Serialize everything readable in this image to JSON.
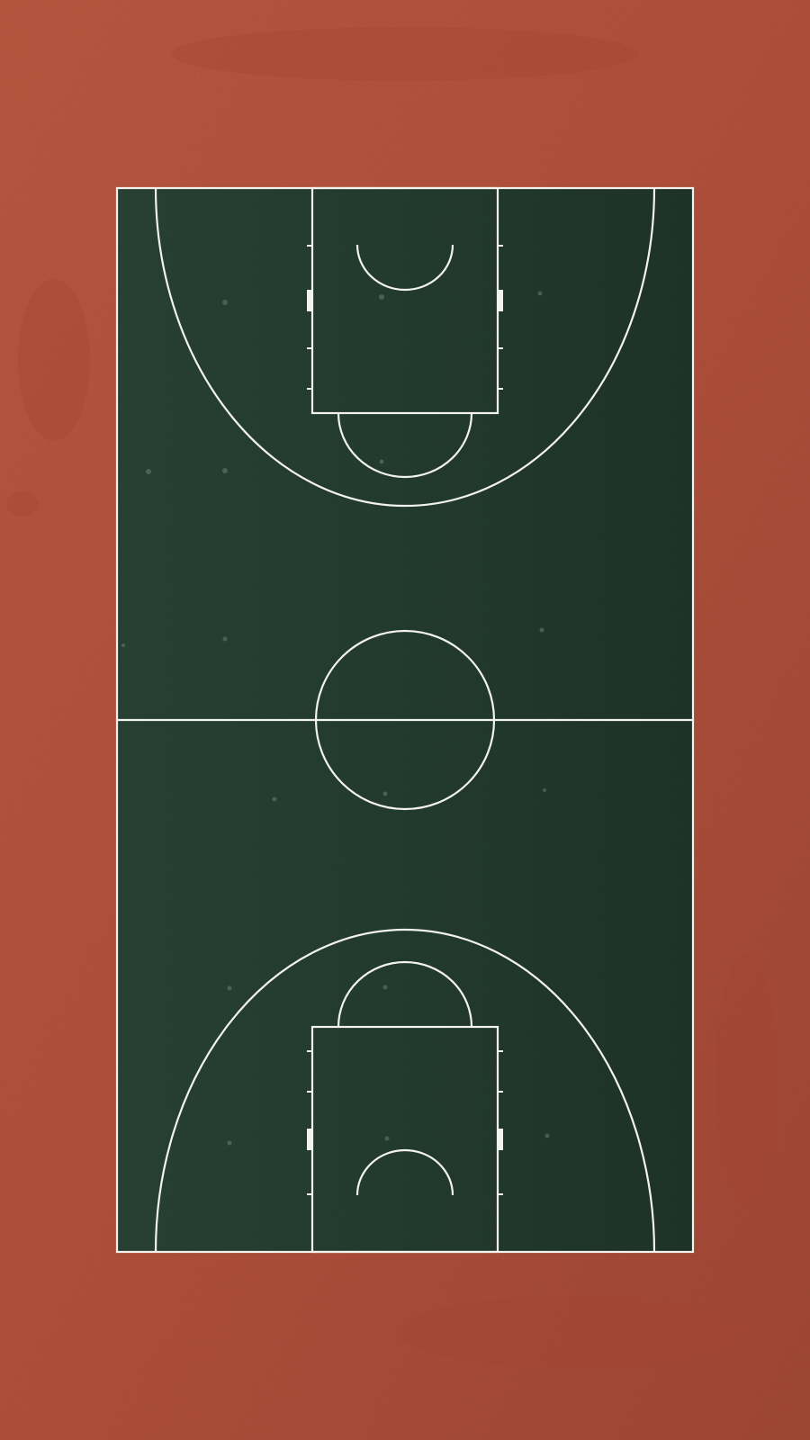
{
  "scene": {
    "subject": "basketball-court",
    "view": "top-down aerial",
    "colors": {
      "surround": "#b85540",
      "surround_dark": "#9e4735",
      "court": "#253d31",
      "court_dark": "#1f352a",
      "lines": "#f2f2ee"
    }
  }
}
